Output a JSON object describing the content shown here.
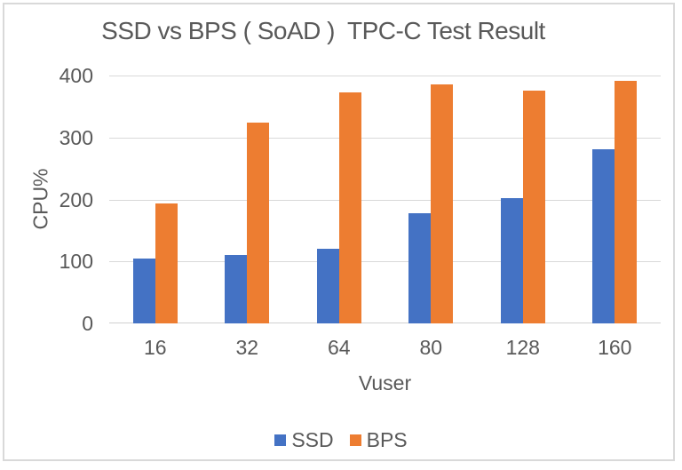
{
  "frame": {
    "background": "#ffffff",
    "border_color": "#d9d9d9"
  },
  "text_color": "#595959",
  "gridline_color": "#d9d9d9",
  "chart_data": {
    "type": "bar",
    "title": "SSD vs BPS ( SoAD )  TPC-C Test Result",
    "xlabel": "Vuser",
    "ylabel": "CPU%",
    "categories": [
      "16",
      "32",
      "64",
      "80",
      "128",
      "160"
    ],
    "series": [
      {
        "name": "SSD",
        "color": "#4472C4",
        "values": [
          105,
          110,
          121,
          178,
          202,
          281
        ]
      },
      {
        "name": "BPS",
        "color": "#ED7D31",
        "values": [
          193,
          324,
          373,
          386,
          375,
          391
        ]
      }
    ],
    "ylim": [
      0,
      400
    ],
    "yticks": [
      0,
      100,
      200,
      300,
      400
    ],
    "grid": true,
    "legend_position": "bottom"
  }
}
